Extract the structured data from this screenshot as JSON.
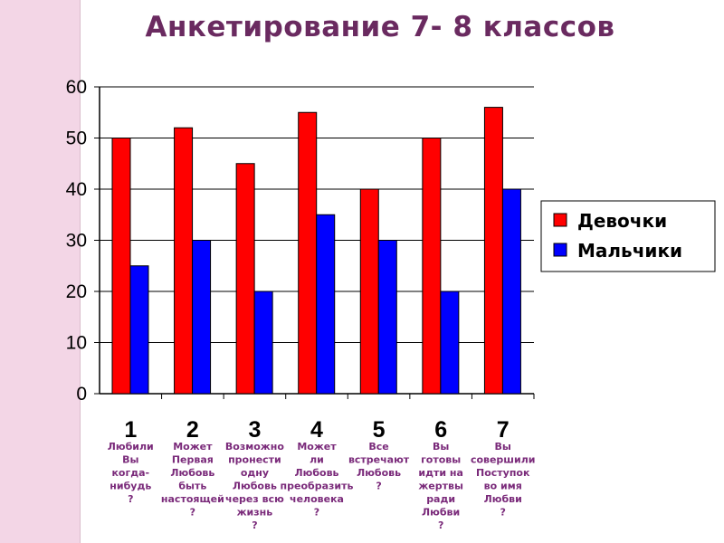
{
  "chart_data": {
    "type": "bar",
    "title": "Анкетирование 7- 8 классов",
    "categories": [
      "1",
      "2",
      "3",
      "4",
      "5",
      "6",
      "7"
    ],
    "category_questions": [
      [
        "Любили",
        "Вы",
        "когда-",
        "нибудь",
        "?"
      ],
      [
        "Может",
        "Первая",
        "Любовь",
        "быть",
        "настоящей",
        "?"
      ],
      [
        "Возможно",
        "пронести",
        "одну",
        "Любовь",
        "через всю",
        "жизнь",
        "?"
      ],
      [
        "Может",
        "ли",
        "Любовь",
        "преобразить",
        "человека",
        "?"
      ],
      [
        "Все",
        "встречают",
        "Любовь",
        "?"
      ],
      [
        "Вы",
        "готовы",
        "идти на",
        "жертвы",
        "ради",
        "Любви",
        "?"
      ],
      [
        "Вы",
        "совершили",
        "Поступок",
        "во имя",
        "Любви",
        "?"
      ]
    ],
    "series": [
      {
        "name": "Девочки",
        "color": "#ff0000",
        "values": [
          50,
          52,
          45,
          55,
          40,
          50,
          56
        ]
      },
      {
        "name": "Мальчики",
        "color": "#0000ff",
        "values": [
          25,
          30,
          20,
          35,
          30,
          20,
          40
        ]
      }
    ],
    "ylim": [
      0,
      60
    ],
    "yticks": [
      0,
      10,
      20,
      30,
      40,
      50,
      60
    ],
    "grid": true,
    "legend": "right"
  }
}
